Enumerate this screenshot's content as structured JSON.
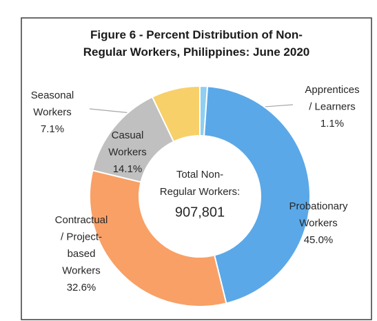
{
  "chart_data": {
    "type": "donut",
    "title": "Figure 6 - Percent Distribution of Non-Regular Workers, Philippines: June 2020",
    "center_label": "Total Non-Regular Workers:",
    "center_value": "907,801",
    "categories": [
      "Apprentices / Learners",
      "Probationary Workers",
      "Contractual / Project-based Workers",
      "Casual Workers",
      "Seasonal Workers"
    ],
    "values": [
      1.1,
      45.0,
      32.6,
      14.1,
      7.1
    ],
    "value_labels": [
      "1.1%",
      "45.0%",
      "32.6%",
      "14.1%",
      "7.1%"
    ],
    "colors": [
      "#8ecff2",
      "#5aa8e8",
      "#f9a066",
      "#c0c0c0",
      "#f7d06a"
    ]
  }
}
